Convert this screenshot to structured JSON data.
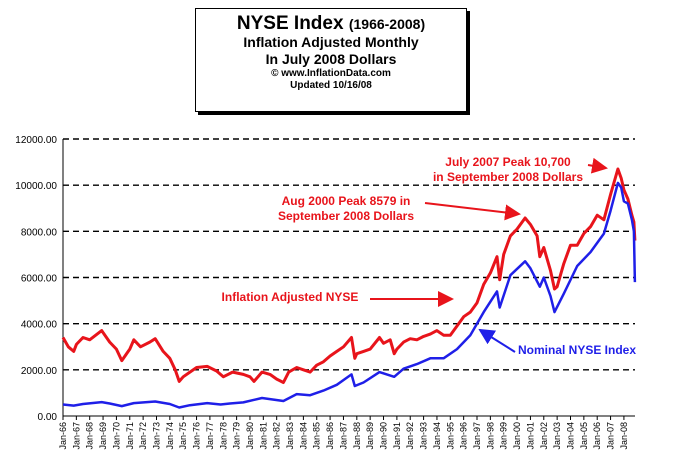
{
  "chart_data": {
    "type": "line",
    "title": "NYSE Index",
    "title_years": "(1966-2008)",
    "subtitle_1": "Inflation Adjusted Monthly",
    "subtitle_2": "In July 2008 Dollars",
    "source": "© www.InflationData.com",
    "updated": "Updated 10/16/08",
    "ylim": [
      0,
      12000
    ],
    "y_ticks": [
      "0.00",
      "2000.00",
      "4000.00",
      "6000.00",
      "8000.00",
      "10000.00",
      "12000.00"
    ],
    "grid": "horizontal dashed",
    "x_ticks": [
      "Jan-66",
      "Jan-67",
      "Jan-68",
      "Jan-69",
      "Jan-70",
      "Jan-71",
      "Jan-72",
      "Jan-73",
      "Jan-74",
      "Jan-75",
      "Jan-76",
      "Jan-77",
      "Jan-78",
      "Jan-79",
      "Jan-80",
      "Jan-81",
      "Jan-82",
      "Jan-83",
      "Jan-84",
      "Jan-85",
      "Jan-86",
      "Jan-87",
      "Jan-88",
      "Jan-89",
      "Jan-90",
      "Jan-91",
      "Jan-92",
      "Jan-93",
      "Jan-94",
      "Jan-95",
      "Jan-96",
      "Jan-97",
      "Jan-98",
      "Jan-99",
      "Jan-00",
      "Jan-01",
      "Jan-02",
      "Jan-03",
      "Jan-04",
      "Jan-05",
      "Jan-06",
      "Jan-07",
      "Jan-08"
    ],
    "series": [
      {
        "name": "Inflation Adjusted NYSE",
        "color": "#e8141b",
        "points": [
          [
            1966.0,
            3400
          ],
          [
            1966.4,
            3000
          ],
          [
            1966.8,
            2800
          ],
          [
            1967.0,
            3100
          ],
          [
            1967.5,
            3400
          ],
          [
            1968.0,
            3300
          ],
          [
            1968.9,
            3700
          ],
          [
            1969.5,
            3200
          ],
          [
            1970.0,
            2900
          ],
          [
            1970.4,
            2400
          ],
          [
            1971.0,
            2900
          ],
          [
            1971.3,
            3300
          ],
          [
            1971.8,
            3000
          ],
          [
            1972.5,
            3200
          ],
          [
            1972.9,
            3350
          ],
          [
            1973.5,
            2800
          ],
          [
            1974.0,
            2500
          ],
          [
            1974.4,
            2000
          ],
          [
            1974.7,
            1500
          ],
          [
            1975.0,
            1700
          ],
          [
            1975.5,
            1900
          ],
          [
            1976.0,
            2100
          ],
          [
            1976.8,
            2150
          ],
          [
            1977.5,
            1950
          ],
          [
            1978.0,
            1700
          ],
          [
            1978.7,
            1900
          ],
          [
            1979.5,
            1800
          ],
          [
            1980.0,
            1700
          ],
          [
            1980.3,
            1500
          ],
          [
            1980.9,
            1900
          ],
          [
            1981.5,
            1800
          ],
          [
            1982.0,
            1600
          ],
          [
            1982.5,
            1450
          ],
          [
            1982.9,
            1900
          ],
          [
            1983.5,
            2100
          ],
          [
            1984.0,
            2000
          ],
          [
            1984.5,
            1900
          ],
          [
            1985.0,
            2200
          ],
          [
            1985.5,
            2350
          ],
          [
            1986.0,
            2600
          ],
          [
            1986.5,
            2800
          ],
          [
            1987.0,
            3000
          ],
          [
            1987.6,
            3400
          ],
          [
            1987.85,
            2500
          ],
          [
            1988.0,
            2700
          ],
          [
            1988.5,
            2800
          ],
          [
            1989.0,
            2900
          ],
          [
            1989.7,
            3400
          ],
          [
            1990.0,
            3150
          ],
          [
            1990.5,
            3300
          ],
          [
            1990.8,
            2700
          ],
          [
            1991.0,
            2900
          ],
          [
            1991.5,
            3200
          ],
          [
            1992.0,
            3350
          ],
          [
            1992.5,
            3300
          ],
          [
            1993.0,
            3450
          ],
          [
            1993.5,
            3550
          ],
          [
            1994.0,
            3700
          ],
          [
            1994.5,
            3500
          ],
          [
            1995.0,
            3500
          ],
          [
            1995.5,
            3900
          ],
          [
            1996.0,
            4300
          ],
          [
            1996.5,
            4500
          ],
          [
            1997.0,
            4900
          ],
          [
            1997.5,
            5700
          ],
          [
            1998.0,
            6200
          ],
          [
            1998.5,
            6900
          ],
          [
            1998.7,
            5900
          ],
          [
            1999.0,
            7000
          ],
          [
            1999.5,
            7800
          ],
          [
            2000.0,
            8100
          ],
          [
            2000.6,
            8579
          ],
          [
            2001.0,
            8300
          ],
          [
            2001.5,
            7800
          ],
          [
            2001.7,
            6900
          ],
          [
            2002.0,
            7300
          ],
          [
            2002.5,
            6300
          ],
          [
            2002.8,
            5500
          ],
          [
            2003.0,
            5600
          ],
          [
            2003.5,
            6600
          ],
          [
            2004.0,
            7400
          ],
          [
            2004.5,
            7400
          ],
          [
            2005.0,
            7900
          ],
          [
            2005.5,
            8200
          ],
          [
            2006.0,
            8700
          ],
          [
            2006.5,
            8500
          ],
          [
            2007.0,
            9600
          ],
          [
            2007.55,
            10700
          ],
          [
            2007.8,
            10300
          ],
          [
            2008.0,
            9800
          ],
          [
            2008.3,
            9400
          ],
          [
            2008.6,
            8700
          ],
          [
            2008.75,
            8400
          ],
          [
            2008.82,
            7600
          ]
        ]
      },
      {
        "name": "Nominal NYSE Index",
        "color": "#1f1fe8",
        "points": [
          [
            1966.0,
            500
          ],
          [
            1966.8,
            450
          ],
          [
            1967.5,
            520
          ],
          [
            1968.9,
            600
          ],
          [
            1969.5,
            540
          ],
          [
            1970.4,
            430
          ],
          [
            1971.3,
            560
          ],
          [
            1972.9,
            630
          ],
          [
            1974.0,
            520
          ],
          [
            1974.7,
            370
          ],
          [
            1975.5,
            470
          ],
          [
            1976.8,
            560
          ],
          [
            1977.8,
            500
          ],
          [
            1978.5,
            540
          ],
          [
            1979.5,
            590
          ],
          [
            1980.9,
            780
          ],
          [
            1982.5,
            650
          ],
          [
            1983.5,
            950
          ],
          [
            1984.5,
            900
          ],
          [
            1985.5,
            1100
          ],
          [
            1986.5,
            1350
          ],
          [
            1987.6,
            1800
          ],
          [
            1987.85,
            1300
          ],
          [
            1988.5,
            1450
          ],
          [
            1989.7,
            1900
          ],
          [
            1990.8,
            1700
          ],
          [
            1991.5,
            2050
          ],
          [
            1992.5,
            2250
          ],
          [
            1993.5,
            2500
          ],
          [
            1994.5,
            2500
          ],
          [
            1995.5,
            2900
          ],
          [
            1996.5,
            3500
          ],
          [
            1997.5,
            4500
          ],
          [
            1998.5,
            5400
          ],
          [
            1998.7,
            4700
          ],
          [
            1999.5,
            6100
          ],
          [
            2000.6,
            6700
          ],
          [
            2001.0,
            6400
          ],
          [
            2001.7,
            5600
          ],
          [
            2002.0,
            6000
          ],
          [
            2002.5,
            5200
          ],
          [
            2002.8,
            4500
          ],
          [
            2003.5,
            5300
          ],
          [
            2004.5,
            6500
          ],
          [
            2005.5,
            7100
          ],
          [
            2006.5,
            7900
          ],
          [
            2007.0,
            8900
          ],
          [
            2007.55,
            10100
          ],
          [
            2007.8,
            9900
          ],
          [
            2008.0,
            9300
          ],
          [
            2008.3,
            9200
          ],
          [
            2008.6,
            8500
          ],
          [
            2008.75,
            8000
          ],
          [
            2008.82,
            5800
          ]
        ]
      }
    ],
    "annotations": [
      {
        "lines": [
          "July 2007 Peak 10,700",
          "in September 2008 Dollars"
        ],
        "color": "#e8141b"
      },
      {
        "lines": [
          "Aug 2000 Peak 8579 in",
          "September 2008 Dollars"
        ],
        "color": "#e8141b"
      },
      {
        "lines": [
          "Inflation Adjusted NYSE"
        ],
        "color": "#e8141b"
      },
      {
        "lines": [
          "Nominal NYSE Index"
        ],
        "color": "#1f1fe8"
      }
    ]
  }
}
